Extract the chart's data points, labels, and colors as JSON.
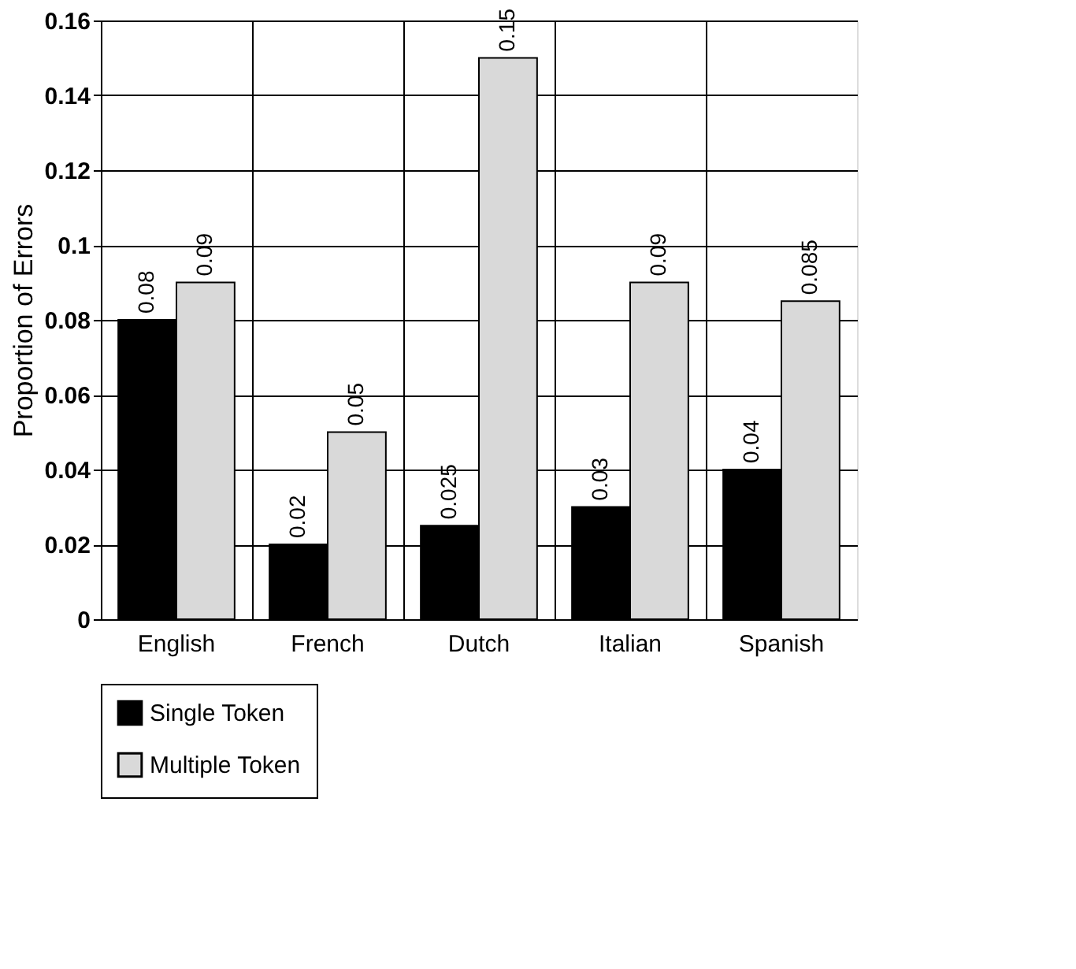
{
  "chart_data": {
    "type": "bar",
    "ylabel": "Proportion of Errors",
    "categories": [
      "English",
      "French",
      "Dutch",
      "Italian",
      "Spanish"
    ],
    "series": [
      {
        "name": "Single Token",
        "color": "#000000",
        "values": [
          0.08,
          0.02,
          0.025,
          0.03,
          0.04
        ]
      },
      {
        "name": "Multiple Token",
        "color": "#d9d9d9",
        "values": [
          0.09,
          0.05,
          0.15,
          0.09,
          0.085
        ]
      }
    ],
    "ylim": [
      0,
      0.16
    ],
    "yticks": [
      0,
      0.02,
      0.04,
      0.06,
      0.08,
      0.1,
      0.12,
      0.14,
      0.16
    ],
    "grid": true,
    "legend": "bottom",
    "data_labels": true
  }
}
